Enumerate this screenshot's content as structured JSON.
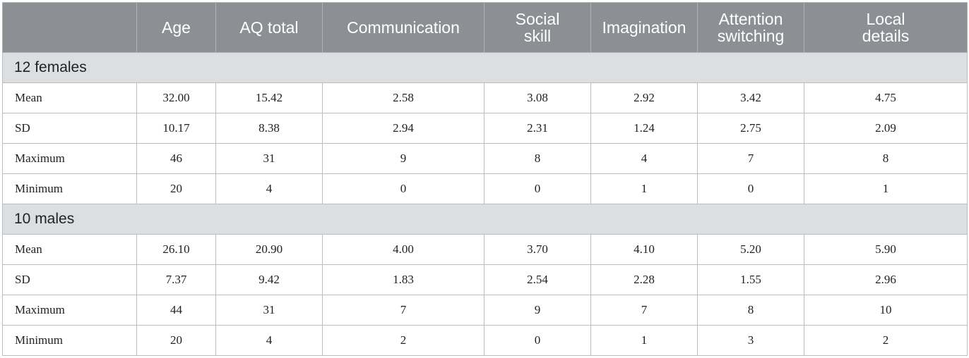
{
  "header": {
    "empty": "",
    "columns": [
      {
        "key": "age",
        "lines": [
          "Age"
        ]
      },
      {
        "key": "aq_total",
        "lines": [
          "AQ total"
        ]
      },
      {
        "key": "communication",
        "lines": [
          "Communication"
        ]
      },
      {
        "key": "social_skill",
        "lines": [
          "Social",
          "skill"
        ]
      },
      {
        "key": "imagination",
        "lines": [
          "Imagination"
        ]
      },
      {
        "key": "attention_switching",
        "lines": [
          "Attention",
          "switching"
        ]
      },
      {
        "key": "local_details",
        "lines": [
          "Local",
          "details"
        ]
      }
    ]
  },
  "groups": [
    {
      "label": "12 females",
      "rows": [
        {
          "stat": "Mean",
          "values": [
            "32.00",
            "15.42",
            "2.58",
            "3.08",
            "2.92",
            "3.42",
            "4.75"
          ]
        },
        {
          "stat": "SD",
          "values": [
            "10.17",
            "8.38",
            "2.94",
            "2.31",
            "1.24",
            "2.75",
            "2.09"
          ]
        },
        {
          "stat": "Maximum",
          "values": [
            "46",
            "31",
            "9",
            "8",
            "4",
            "7",
            "8"
          ]
        },
        {
          "stat": "Minimum",
          "values": [
            "20",
            "4",
            "0",
            "0",
            "1",
            "0",
            "1"
          ]
        }
      ]
    },
    {
      "label": "10 males",
      "rows": [
        {
          "stat": "Mean",
          "values": [
            "26.10",
            "20.90",
            "4.00",
            "3.70",
            "4.10",
            "5.20",
            "5.90"
          ]
        },
        {
          "stat": "SD",
          "values": [
            "7.37",
            "9.42",
            "1.83",
            "2.54",
            "2.28",
            "1.55",
            "2.96"
          ]
        },
        {
          "stat": "Maximum",
          "values": [
            "44",
            "31",
            "7",
            "9",
            "7",
            "8",
            "10"
          ]
        },
        {
          "stat": "Minimum",
          "values": [
            "20",
            "4",
            "2",
            "0",
            "1",
            "3",
            "2"
          ]
        }
      ]
    }
  ],
  "colors": {
    "header_bg": "#8c9094",
    "group_bg": "#dcdfe1",
    "border": "#bdbdbd"
  }
}
